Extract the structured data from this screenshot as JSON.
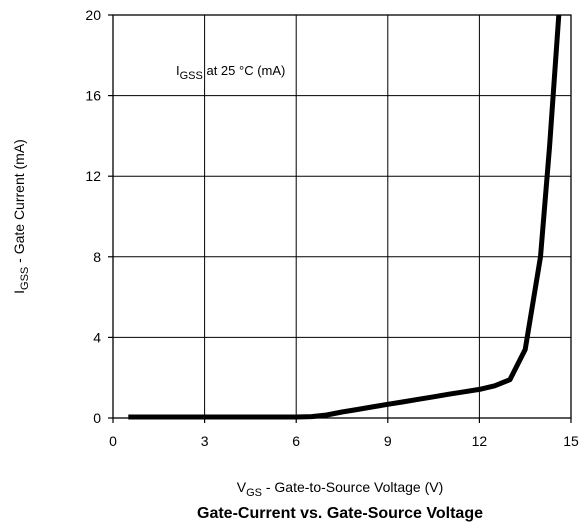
{
  "chart_data": {
    "type": "line",
    "title": "Gate-Current vs. Gate-Source Voltage",
    "xlabel": {
      "main": "V",
      "sub": "GS",
      "rest": " - Gate-to-Source Voltage (V)"
    },
    "ylabel": {
      "main": "I",
      "sub": "GSS",
      "rest": " - Gate Current (mA)"
    },
    "annotation": {
      "main": "I",
      "sub": "GSS",
      "rest": " at 25 °C (mA)"
    },
    "xlim": [
      0,
      15
    ],
    "ylim": [
      0,
      20
    ],
    "xticks": [
      0,
      3,
      6,
      9,
      12,
      15
    ],
    "yticks": [
      0,
      4,
      8,
      12,
      16,
      20
    ],
    "grid": true,
    "series": [
      {
        "x": [
          0.5,
          2,
          4,
          6,
          6.5,
          7,
          7.5,
          8,
          8.5,
          9,
          9.5,
          10,
          10.5,
          11,
          11.5,
          12,
          12.5,
          13,
          13.5,
          14,
          14.3,
          14.6
        ],
        "y": [
          0.05,
          0.05,
          0.05,
          0.05,
          0.07,
          0.15,
          0.3,
          0.42,
          0.55,
          0.68,
          0.8,
          0.93,
          1.05,
          1.18,
          1.3,
          1.42,
          1.6,
          1.9,
          3.4,
          8.0,
          13.5,
          20.0
        ],
        "color": "#000000"
      }
    ]
  }
}
